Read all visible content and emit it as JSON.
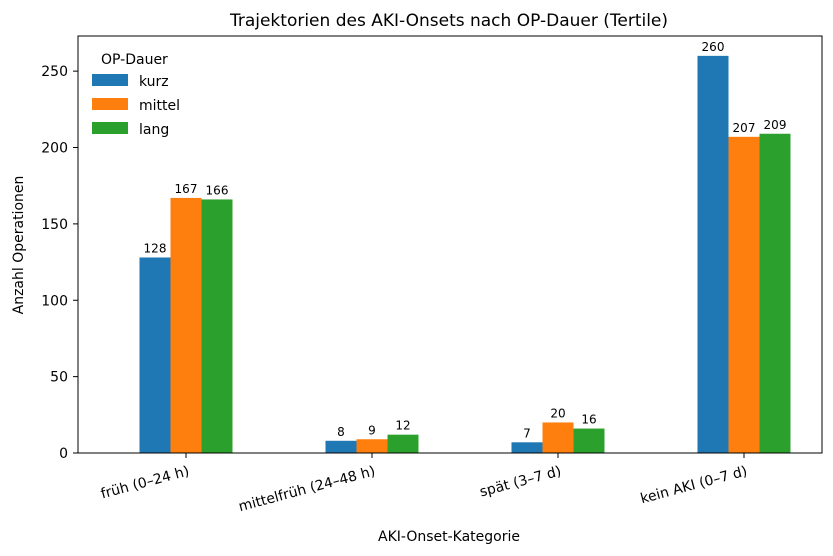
{
  "chart_data": {
    "type": "bar",
    "title": "Trajektorien des AKI-Onsets nach OP-Dauer (Tertile)",
    "xlabel": "AKI-Onset-Kategorie",
    "ylabel": "Anzahl Operationen",
    "categories": [
      "früh (0–24 h)",
      "mittelfrüh (24–48 h)",
      "spät (3–7 d)",
      "kein AKI (0–7 d)"
    ],
    "series": [
      {
        "name": "kurz",
        "color": "#1f77b4",
        "values": [
          128,
          8,
          7,
          260
        ]
      },
      {
        "name": "mittel",
        "color": "#ff7f0e",
        "values": [
          167,
          9,
          20,
          207
        ]
      },
      {
        "name": "lang",
        "color": "#2ca02c",
        "values": [
          166,
          12,
          16,
          209
        ]
      }
    ],
    "ylim": [
      0,
      273
    ],
    "yticks": [
      0,
      50,
      100,
      150,
      200,
      250
    ],
    "grid": false,
    "legend": {
      "title": "OP-Dauer",
      "placement": "top-left"
    }
  }
}
